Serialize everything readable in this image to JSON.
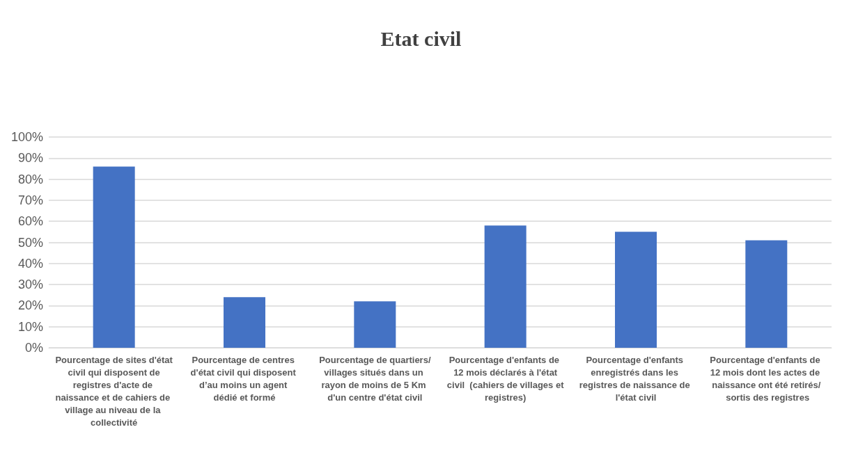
{
  "chart_data": {
    "type": "bar",
    "title": "Etat civil",
    "categories": [
      "Pourcentage de sites d'état civil qui disposent de registres d'acte de naissance et de cahiers de village au niveau de la collectivité",
      "Pourcentage de centres d'état civil qui disposent d’au moins un agent dédié et formé",
      "Pourcentage de quartiers/villages situés dans un rayon de moins de 5 Km d'un centre d'état civil",
      "Pourcentage d'enfants de 12 mois déclarés à l'état civil  (cahiers de villages et registres)",
      "Pourcentage d'enfants enregistrés dans les registres de naissance de l'état civil",
      "Pourcentage d'enfants de 12 mois dont les actes de naissance ont été retirés/ sortis des registres"
    ],
    "values": [
      86,
      24,
      22,
      58,
      55,
      51
    ],
    "color": "#4472c4",
    "ylim": [
      0,
      100
    ],
    "yticks": [
      {
        "value": 0,
        "label": "0%"
      },
      {
        "value": 10,
        "label": "10%"
      },
      {
        "value": 20,
        "label": "20%"
      },
      {
        "value": 30,
        "label": "30%"
      },
      {
        "value": 40,
        "label": "40%"
      },
      {
        "value": 50,
        "label": "50%"
      },
      {
        "value": 60,
        "label": "60%"
      },
      {
        "value": 70,
        "label": "70%"
      },
      {
        "value": 80,
        "label": "80%"
      },
      {
        "value": 90,
        "label": "90%"
      },
      {
        "value": 100,
        "label": "100%"
      }
    ],
    "grid": true
  }
}
